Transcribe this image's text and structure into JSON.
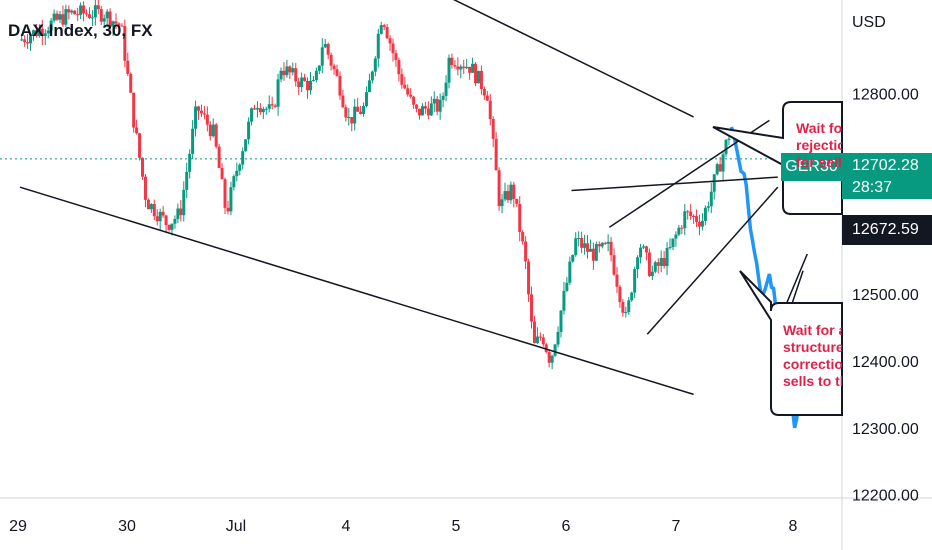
{
  "header": {
    "title": "DAX Index, 30, FX",
    "currency": "USD"
  },
  "symbol_tag": "GER30",
  "current_price": {
    "value": "12702.28",
    "countdown": "28:37"
  },
  "last_price": "12672.59",
  "callouts": [
    {
      "lines": [
        "Wait for",
        "rejection",
        "for sell"
      ]
    },
    {
      "lines": [
        "Wait for a",
        "structure",
        "correction",
        "sells to th"
      ]
    }
  ],
  "colors": {
    "up": "#089981",
    "down": "#f23645",
    "projection": "#2196f3",
    "text_accent": "#e0224a"
  },
  "chart_data": {
    "type": "candlestick",
    "title": "DAX Index, 30, FX",
    "y_axis": {
      "ticks": [
        "12200.00",
        "12300.00",
        "12400.00",
        "12500.00",
        "12800.00"
      ],
      "ylim": [
        12195,
        12940
      ]
    },
    "x_axis": {
      "ticks": [
        "29",
        "30",
        "Jul",
        "4",
        "5",
        "6",
        "7",
        "8"
      ]
    },
    "price_levels": [
      12702.28,
      12672.59
    ],
    "series_anchors": [
      {
        "x": 0.0,
        "y": 12880
      },
      {
        "x": 0.6,
        "y": 12920
      },
      {
        "x": 1.0,
        "y": 12920
      },
      {
        "x": 1.2,
        "y": 12900
      },
      {
        "x": 1.35,
        "y": 12760
      },
      {
        "x": 1.5,
        "y": 12640
      },
      {
        "x": 1.75,
        "y": 12605
      },
      {
        "x": 1.9,
        "y": 12620
      },
      {
        "x": 2.1,
        "y": 12780
      },
      {
        "x": 2.3,
        "y": 12740
      },
      {
        "x": 2.45,
        "y": 12620
      },
      {
        "x": 2.6,
        "y": 12700
      },
      {
        "x": 2.8,
        "y": 12790
      },
      {
        "x": 3.0,
        "y": 12770
      },
      {
        "x": 3.1,
        "y": 12840
      },
      {
        "x": 3.3,
        "y": 12820
      },
      {
        "x": 3.5,
        "y": 12810
      },
      {
        "x": 3.6,
        "y": 12880
      },
      {
        "x": 3.8,
        "y": 12810
      },
      {
        "x": 3.9,
        "y": 12760
      },
      {
        "x": 4.1,
        "y": 12780
      },
      {
        "x": 4.3,
        "y": 12920
      },
      {
        "x": 4.5,
        "y": 12830
      },
      {
        "x": 4.7,
        "y": 12770
      },
      {
        "x": 4.85,
        "y": 12780
      },
      {
        "x": 5.0,
        "y": 12780
      },
      {
        "x": 5.1,
        "y": 12855
      },
      {
        "x": 5.35,
        "y": 12840
      },
      {
        "x": 5.55,
        "y": 12800
      },
      {
        "x": 5.7,
        "y": 12630
      },
      {
        "x": 5.85,
        "y": 12660
      },
      {
        "x": 6.0,
        "y": 12550
      },
      {
        "x": 6.1,
        "y": 12420
      },
      {
        "x": 6.2,
        "y": 12440
      },
      {
        "x": 6.3,
        "y": 12400
      },
      {
        "x": 6.4,
        "y": 12460
      },
      {
        "x": 6.6,
        "y": 12580
      },
      {
        "x": 6.8,
        "y": 12560
      },
      {
        "x": 7.0,
        "y": 12570
      },
      {
        "x": 7.2,
        "y": 12460
      },
      {
        "x": 7.35,
        "y": 12580
      },
      {
        "x": 7.5,
        "y": 12530
      },
      {
        "x": 7.7,
        "y": 12560
      },
      {
        "x": 7.9,
        "y": 12620
      },
      {
        "x": 8.1,
        "y": 12610
      },
      {
        "x": 8.3,
        "y": 12690
      },
      {
        "x": 8.45,
        "y": 12750
      }
    ],
    "projection": [
      {
        "x": 8.45,
        "y": 12750
      },
      {
        "x": 8.6,
        "y": 12680
      },
      {
        "x": 8.7,
        "y": 12580
      },
      {
        "x": 8.8,
        "y": 12500
      },
      {
        "x": 8.9,
        "y": 12530
      },
      {
        "x": 9.0,
        "y": 12480
      },
      {
        "x": 9.1,
        "y": 12450
      },
      {
        "x": 9.2,
        "y": 12300
      },
      {
        "x": 9.3,
        "y": 12360
      }
    ],
    "trendlines": [
      {
        "from": [
          0.0,
          12660
        ],
        "to": [
          8.0,
          12350
        ]
      },
      {
        "from": [
          5.0,
          12950
        ],
        "to": [
          8.0,
          12765
        ]
      },
      {
        "from": [
          6.55,
          12655
        ],
        "to": [
          9.0,
          12675
        ]
      },
      {
        "from": [
          7.0,
          12600
        ],
        "to": [
          8.9,
          12760
        ]
      },
      {
        "from": [
          7.45,
          12440
        ],
        "to": [
          9.0,
          12660
        ]
      },
      {
        "from": [
          9.1,
          12460
        ],
        "to": [
          9.3,
          12535
        ]
      },
      {
        "from": [
          9.1,
          12485
        ],
        "to": [
          9.35,
          12560
        ]
      }
    ]
  }
}
